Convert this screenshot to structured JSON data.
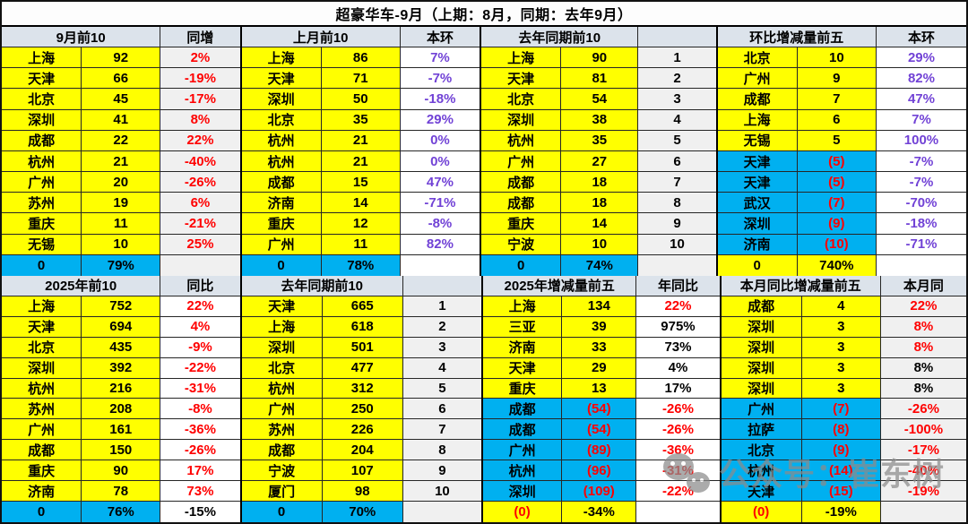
{
  "title": "超豪华车-9月（上期：8月，同期：去年9月）",
  "watermark": {
    "icon": "wechat-icon",
    "text": "公众号：崔东树"
  },
  "palette": {
    "highlight_yellow": "#FFFF00",
    "decline_cyan": "#00B0F0",
    "negative_red": "#FF0000",
    "mom_purple": "#7142D6",
    "header_bg": "#DCE3EB",
    "neutral_cell_bg": "#F0F0F0"
  },
  "chart_data": {
    "type": "table",
    "title": "超豪华车-9月（上期：8月，同期：去年9月）",
    "tables": [
      {
        "id": "sep-top10",
        "section": "top",
        "header": "9月前10",
        "pct_header": "同增",
        "third_col": "pct",
        "pct_col_bg": "gray",
        "rows": [
          {
            "city": "上海",
            "value": "92",
            "pct": "2%",
            "bg": "y",
            "vc": "k",
            "pc": "r"
          },
          {
            "city": "天津",
            "value": "66",
            "pct": "-19%",
            "bg": "y",
            "vc": "k",
            "pc": "r"
          },
          {
            "city": "北京",
            "value": "45",
            "pct": "-17%",
            "bg": "y",
            "vc": "k",
            "pc": "r"
          },
          {
            "city": "深圳",
            "value": "41",
            "pct": "8%",
            "bg": "y",
            "vc": "k",
            "pc": "r"
          },
          {
            "city": "成都",
            "value": "22",
            "pct": "22%",
            "bg": "y",
            "vc": "k",
            "pc": "r"
          },
          {
            "city": "杭州",
            "value": "21",
            "pct": "-40%",
            "bg": "y",
            "vc": "k",
            "pc": "r"
          },
          {
            "city": "广州",
            "value": "20",
            "pct": "-26%",
            "bg": "y",
            "vc": "k",
            "pc": "r"
          },
          {
            "city": "苏州",
            "value": "19",
            "pct": "6%",
            "bg": "y",
            "vc": "k",
            "pc": "r"
          },
          {
            "city": "重庆",
            "value": "11",
            "pct": "-21%",
            "bg": "y",
            "vc": "k",
            "pc": "r"
          },
          {
            "city": "无锡",
            "value": "10",
            "pct": "25%",
            "bg": "y",
            "vc": "k",
            "pc": "r"
          }
        ],
        "total": {
          "city": "0",
          "value": "79%",
          "pct": "",
          "bg": "b",
          "cc": "k"
        }
      },
      {
        "id": "last-month-top10",
        "section": "top",
        "header": "上月前10",
        "pct_header": "本环",
        "third_col": "pct",
        "pct_col_bg": "white",
        "rows": [
          {
            "city": "上海",
            "value": "86",
            "pct": "7%",
            "bg": "y",
            "vc": "k",
            "pc": "p"
          },
          {
            "city": "天津",
            "value": "71",
            "pct": "-7%",
            "bg": "y",
            "vc": "k",
            "pc": "p"
          },
          {
            "city": "深圳",
            "value": "50",
            "pct": "-18%",
            "bg": "y",
            "vc": "k",
            "pc": "p"
          },
          {
            "city": "北京",
            "value": "35",
            "pct": "29%",
            "bg": "y",
            "vc": "k",
            "pc": "p"
          },
          {
            "city": "杭州",
            "value": "21",
            "pct": "0%",
            "bg": "y",
            "vc": "k",
            "pc": "p"
          },
          {
            "city": "杭州",
            "value": "21",
            "pct": "0%",
            "bg": "y",
            "vc": "k",
            "pc": "p"
          },
          {
            "city": "成都",
            "value": "15",
            "pct": "47%",
            "bg": "y",
            "vc": "k",
            "pc": "p"
          },
          {
            "city": "济南",
            "value": "14",
            "pct": "-71%",
            "bg": "y",
            "vc": "k",
            "pc": "p"
          },
          {
            "city": "重庆",
            "value": "12",
            "pct": "-8%",
            "bg": "y",
            "vc": "k",
            "pc": "p"
          },
          {
            "city": "广州",
            "value": "11",
            "pct": "82%",
            "bg": "y",
            "vc": "k",
            "pc": "p"
          }
        ],
        "total": {
          "city": "0",
          "value": "78%",
          "pct": "",
          "bg": "b",
          "cc": "k"
        }
      },
      {
        "id": "last-year-sep-top10",
        "section": "top",
        "header": "去年同期前10",
        "pct_header": "",
        "third_col": "rank",
        "pct_col_bg": "gray",
        "rows": [
          {
            "city": "上海",
            "value": "90",
            "pct": "1",
            "bg": "y",
            "vc": "k",
            "pc": "k"
          },
          {
            "city": "天津",
            "value": "81",
            "pct": "2",
            "bg": "y",
            "vc": "k",
            "pc": "k"
          },
          {
            "city": "北京",
            "value": "54",
            "pct": "3",
            "bg": "y",
            "vc": "k",
            "pc": "k"
          },
          {
            "city": "深圳",
            "value": "38",
            "pct": "4",
            "bg": "y",
            "vc": "k",
            "pc": "k"
          },
          {
            "city": "杭州",
            "value": "35",
            "pct": "5",
            "bg": "y",
            "vc": "k",
            "pc": "k"
          },
          {
            "city": "广州",
            "value": "27",
            "pct": "6",
            "bg": "y",
            "vc": "k",
            "pc": "k"
          },
          {
            "city": "成都",
            "value": "18",
            "pct": "7",
            "bg": "y",
            "vc": "k",
            "pc": "k"
          },
          {
            "city": "成都",
            "value": "18",
            "pct": "8",
            "bg": "y",
            "vc": "k",
            "pc": "k"
          },
          {
            "city": "重庆",
            "value": "14",
            "pct": "9",
            "bg": "y",
            "vc": "k",
            "pc": "k"
          },
          {
            "city": "宁波",
            "value": "10",
            "pct": "10",
            "bg": "y",
            "vc": "k",
            "pc": "k"
          }
        ],
        "total": {
          "city": "0",
          "value": "74%",
          "pct": "",
          "bg": "b",
          "cc": "k"
        }
      },
      {
        "id": "mom-change-top5",
        "section": "top",
        "header": "环比增减量前五",
        "pct_header": "本环",
        "third_col": "pct",
        "pct_col_bg": "white",
        "rows": [
          {
            "city": "北京",
            "value": "10",
            "pct": "29%",
            "bg": "y",
            "vc": "k",
            "pc": "p"
          },
          {
            "city": "广州",
            "value": "9",
            "pct": "82%",
            "bg": "y",
            "vc": "k",
            "pc": "p"
          },
          {
            "city": "成都",
            "value": "7",
            "pct": "47%",
            "bg": "y",
            "vc": "k",
            "pc": "p"
          },
          {
            "city": "上海",
            "value": "6",
            "pct": "7%",
            "bg": "y",
            "vc": "k",
            "pc": "p"
          },
          {
            "city": "无锡",
            "value": "5",
            "pct": "100%",
            "bg": "y",
            "vc": "k",
            "pc": "p"
          },
          {
            "city": "天津",
            "value": "(5)",
            "pct": "-7%",
            "bg": "b",
            "vc": "r",
            "pc": "p"
          },
          {
            "city": "天津",
            "value": "(5)",
            "pct": "-7%",
            "bg": "b",
            "vc": "r",
            "pc": "p"
          },
          {
            "city": "武汉",
            "value": "(7)",
            "pct": "-70%",
            "bg": "b",
            "vc": "r",
            "pc": "p"
          },
          {
            "city": "深圳",
            "value": "(9)",
            "pct": "-18%",
            "bg": "b",
            "vc": "r",
            "pc": "p"
          },
          {
            "city": "济南",
            "value": "(10)",
            "pct": "-71%",
            "bg": "b",
            "vc": "r",
            "pc": "p"
          }
        ],
        "total": {
          "city": "0",
          "value": "740%",
          "pct": "",
          "bg": "y",
          "cc": "k"
        }
      },
      {
        "id": "ytd2025-top10",
        "section": "bottom",
        "header": "2025年前10",
        "pct_header": "同比",
        "third_col": "pct",
        "pct_col_bg": "white",
        "rows": [
          {
            "city": "上海",
            "value": "752",
            "pct": "22%",
            "bg": "y",
            "vc": "k",
            "pc": "r"
          },
          {
            "city": "天津",
            "value": "694",
            "pct": "4%",
            "bg": "y",
            "vc": "k",
            "pc": "r"
          },
          {
            "city": "北京",
            "value": "435",
            "pct": "-9%",
            "bg": "y",
            "vc": "k",
            "pc": "r"
          },
          {
            "city": "深圳",
            "value": "392",
            "pct": "-22%",
            "bg": "y",
            "vc": "k",
            "pc": "r"
          },
          {
            "city": "杭州",
            "value": "216",
            "pct": "-31%",
            "bg": "y",
            "vc": "k",
            "pc": "r"
          },
          {
            "city": "苏州",
            "value": "208",
            "pct": "-8%",
            "bg": "y",
            "vc": "k",
            "pc": "r"
          },
          {
            "city": "广州",
            "value": "161",
            "pct": "-36%",
            "bg": "y",
            "vc": "k",
            "pc": "r"
          },
          {
            "city": "成都",
            "value": "150",
            "pct": "-26%",
            "bg": "y",
            "vc": "k",
            "pc": "r"
          },
          {
            "city": "重庆",
            "value": "90",
            "pct": "17%",
            "bg": "y",
            "vc": "k",
            "pc": "r"
          },
          {
            "city": "济南",
            "value": "78",
            "pct": "73%",
            "bg": "y",
            "vc": "k",
            "pc": "r"
          }
        ],
        "total": {
          "city": "0",
          "value": "76%",
          "pct": "-15%",
          "bg": "b",
          "cc": "k"
        }
      },
      {
        "id": "last-year-ytd-top10",
        "section": "bottom",
        "header": "去年同期前10",
        "pct_header": "",
        "third_col": "rank",
        "pct_col_bg": "gray",
        "rows": [
          {
            "city": "天津",
            "value": "665",
            "pct": "1",
            "bg": "y",
            "vc": "k",
            "pc": "k"
          },
          {
            "city": "上海",
            "value": "618",
            "pct": "2",
            "bg": "y",
            "vc": "k",
            "pc": "k"
          },
          {
            "city": "深圳",
            "value": "501",
            "pct": "3",
            "bg": "y",
            "vc": "k",
            "pc": "k"
          },
          {
            "city": "北京",
            "value": "477",
            "pct": "4",
            "bg": "y",
            "vc": "k",
            "pc": "k"
          },
          {
            "city": "杭州",
            "value": "312",
            "pct": "5",
            "bg": "y",
            "vc": "k",
            "pc": "k"
          },
          {
            "city": "广州",
            "value": "250",
            "pct": "6",
            "bg": "y",
            "vc": "k",
            "pc": "k"
          },
          {
            "city": "苏州",
            "value": "226",
            "pct": "7",
            "bg": "y",
            "vc": "k",
            "pc": "k"
          },
          {
            "city": "成都",
            "value": "204",
            "pct": "8",
            "bg": "y",
            "vc": "k",
            "pc": "k"
          },
          {
            "city": "宁波",
            "value": "107",
            "pct": "9",
            "bg": "y",
            "vc": "k",
            "pc": "k"
          },
          {
            "city": "厦门",
            "value": "98",
            "pct": "10",
            "bg": "y",
            "vc": "k",
            "pc": "k"
          }
        ],
        "total": {
          "city": "0",
          "value": "70%",
          "pct": "",
          "bg": "b",
          "cc": "k"
        }
      },
      {
        "id": "ytd-change-top5",
        "section": "bottom",
        "header": "2025年增减量前五",
        "pct_header": "年同比",
        "third_col": "pct",
        "pct_col_bg": "white",
        "rows": [
          {
            "city": "上海",
            "value": "134",
            "pct": "22%",
            "bg": "y",
            "vc": "k",
            "pc": "r"
          },
          {
            "city": "三亚",
            "value": "39",
            "pct": "975%",
            "bg": "y",
            "vc": "k",
            "pc": "k"
          },
          {
            "city": "济南",
            "value": "33",
            "pct": "73%",
            "bg": "y",
            "vc": "k",
            "pc": "k"
          },
          {
            "city": "天津",
            "value": "29",
            "pct": "4%",
            "bg": "y",
            "vc": "k",
            "pc": "k"
          },
          {
            "city": "重庆",
            "value": "13",
            "pct": "17%",
            "bg": "y",
            "vc": "k",
            "pc": "k"
          },
          {
            "city": "成都",
            "value": "(54)",
            "pct": "-26%",
            "bg": "b",
            "vc": "r",
            "pc": "r"
          },
          {
            "city": "成都",
            "value": "(54)",
            "pct": "-26%",
            "bg": "b",
            "vc": "r",
            "pc": "r"
          },
          {
            "city": "广州",
            "value": "(89)",
            "pct": "-36%",
            "bg": "b",
            "vc": "r",
            "pc": "r"
          },
          {
            "city": "杭州",
            "value": "(96)",
            "pct": "-31%",
            "bg": "b",
            "vc": "r",
            "pc": "r"
          },
          {
            "city": "深圳",
            "value": "(109)",
            "pct": "-22%",
            "bg": "b",
            "vc": "r",
            "pc": "r"
          }
        ],
        "total": {
          "city": "(0)",
          "value": "-34%",
          "pct": "",
          "bg": "y",
          "cc": "r"
        }
      },
      {
        "id": "month-yoy-change-top5",
        "section": "bottom",
        "header": "本月同比增减量前五",
        "pct_header": "本月同",
        "third_col": "pct",
        "pct_col_bg": "gray",
        "rows": [
          {
            "city": "成都",
            "value": "4",
            "pct": "22%",
            "bg": "y",
            "vc": "k",
            "pc": "r"
          },
          {
            "city": "深圳",
            "value": "3",
            "pct": "8%",
            "bg": "y",
            "vc": "k",
            "pc": "r"
          },
          {
            "city": "深圳",
            "value": "3",
            "pct": "8%",
            "bg": "y",
            "vc": "k",
            "pc": "r"
          },
          {
            "city": "深圳",
            "value": "3",
            "pct": "8%",
            "bg": "y",
            "vc": "k",
            "pc": "k"
          },
          {
            "city": "深圳",
            "value": "3",
            "pct": "8%",
            "bg": "y",
            "vc": "k",
            "pc": "k"
          },
          {
            "city": "广州",
            "value": "(7)",
            "pct": "-26%",
            "bg": "b",
            "vc": "r",
            "pc": "r"
          },
          {
            "city": "拉萨",
            "value": "(8)",
            "pct": "-100%",
            "bg": "b",
            "vc": "r",
            "pc": "r"
          },
          {
            "city": "北京",
            "value": "(9)",
            "pct": "-17%",
            "bg": "b",
            "vc": "r",
            "pc": "r"
          },
          {
            "city": "杭州",
            "value": "(14)",
            "pct": "-40%",
            "bg": "b",
            "vc": "r",
            "pc": "r"
          },
          {
            "city": "天津",
            "value": "(15)",
            "pct": "-19%",
            "bg": "b",
            "vc": "r",
            "pc": "r"
          }
        ],
        "total": {
          "city": "(0)",
          "value": "-19%",
          "pct": "",
          "bg": "y",
          "cc": "r"
        }
      }
    ]
  }
}
